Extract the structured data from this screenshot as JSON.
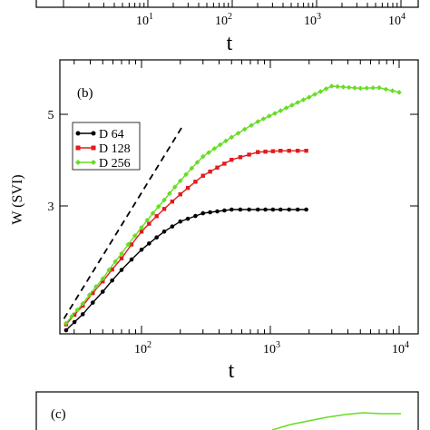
{
  "chart_data": [
    {
      "panel": "top (partial)",
      "type": "line",
      "xlabel": "t",
      "xscale": "log",
      "xlim": [
        20,
        15000
      ],
      "x_tick_labels": [
        {
          "base": "10",
          "exp": "1",
          "value": 10
        },
        {
          "base": "10",
          "exp": "2",
          "value": 100
        },
        {
          "base": "10",
          "exp": "3",
          "value": 1000
        },
        {
          "base": "10",
          "exp": "4",
          "value": 10000
        }
      ]
    },
    {
      "panel": "(b)",
      "panel_label": "(b)",
      "type": "line",
      "xlabel": "t",
      "ylabel": "W (SVI)",
      "xscale": "log",
      "yscale": "log",
      "xlim": [
        20,
        15000
      ],
      "ylim": [
        1.2,
        8.5
      ],
      "x_tick_labels": [
        {
          "base": "10",
          "exp": "2",
          "value": 100
        },
        {
          "base": "10",
          "exp": "3",
          "value": 1000
        },
        {
          "base": "10",
          "exp": "4",
          "value": 10000
        }
      ],
      "y_ticks": [
        {
          "label": "3",
          "value": 3
        },
        {
          "label": "5",
          "value": 5
        }
      ],
      "legend_position": "left",
      "guide_line": {
        "style": "dashed",
        "color": "#000000",
        "x": [
          25,
          210
        ],
        "y": [
          1.6,
          4.7
        ]
      },
      "series": [
        {
          "name": "D 64",
          "color": "#000000",
          "marker": "circle",
          "points": [
            [
              26,
              1.5
            ],
            [
              35,
              1.64
            ],
            [
              50,
              1.86
            ],
            [
              70,
              2.1
            ],
            [
              100,
              2.35
            ],
            [
              150,
              2.6
            ],
            [
              200,
              2.75
            ],
            [
              300,
              2.88
            ],
            [
              500,
              2.94
            ],
            [
              800,
              2.94
            ],
            [
              1200,
              2.94
            ],
            [
              1900,
              2.94
            ]
          ]
        },
        {
          "name": "D 128",
          "color": "#e31a1c",
          "marker": "square",
          "points": [
            [
              26,
              1.55
            ],
            [
              35,
              1.72
            ],
            [
              50,
              1.97
            ],
            [
              70,
              2.24
            ],
            [
              100,
              2.6
            ],
            [
              150,
              2.95
            ],
            [
              200,
              3.2
            ],
            [
              300,
              3.55
            ],
            [
              500,
              3.88
            ],
            [
              800,
              4.05
            ],
            [
              1200,
              4.08
            ],
            [
              1900,
              4.08
            ]
          ]
        },
        {
          "name": "D 256",
          "color": "#66dd22",
          "marker": "diamond",
          "points": [
            [
              26,
              1.56
            ],
            [
              35,
              1.74
            ],
            [
              50,
              2.0
            ],
            [
              70,
              2.3
            ],
            [
              100,
              2.66
            ],
            [
              150,
              3.1
            ],
            [
              200,
              3.45
            ],
            [
              300,
              3.95
            ],
            [
              500,
              4.4
            ],
            [
              800,
              4.8
            ],
            [
              1200,
              5.1
            ],
            [
              2000,
              5.5
            ],
            [
              3000,
              5.85
            ],
            [
              5000,
              5.78
            ],
            [
              7000,
              5.8
            ],
            [
              10000,
              5.65
            ]
          ]
        }
      ]
    },
    {
      "panel": "(c) (partial)",
      "panel_label": "(c)",
      "type": "line"
    }
  ]
}
